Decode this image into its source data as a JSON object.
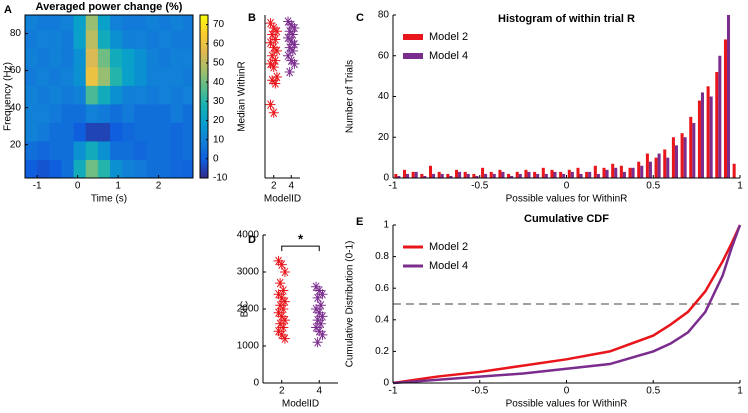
{
  "chart_data": [
    {
      "type": "heatmap",
      "panel": "A",
      "title": "Averaged power change (%)",
      "xlabel": "Time (s)",
      "ylabel": "Frequency (Hz)",
      "xbins": [
        -1.3,
        -1,
        -0.7,
        -0.4,
        -0.1,
        0.2,
        0.5,
        0.8,
        1.1,
        1.4,
        1.7,
        2,
        2.3,
        2.6,
        2.85
      ],
      "ybins": [
        2,
        12,
        22,
        32,
        42,
        52,
        62,
        72,
        82,
        90
      ],
      "z": [
        [
          0,
          -2,
          0,
          5,
          25,
          40,
          30,
          15,
          10,
          8,
          5,
          5,
          3,
          2
        ],
        [
          5,
          3,
          5,
          5,
          15,
          25,
          15,
          5,
          5,
          3,
          5,
          5,
          3,
          5
        ],
        [
          10,
          8,
          5,
          5,
          0,
          -5,
          -5,
          0,
          3,
          5,
          5,
          5,
          3,
          5
        ],
        [
          10,
          10,
          8,
          5,
          5,
          10,
          8,
          5,
          8,
          5,
          5,
          5,
          8,
          5
        ],
        [
          10,
          8,
          10,
          8,
          10,
          35,
          25,
          15,
          10,
          10,
          8,
          10,
          8,
          10
        ],
        [
          8,
          10,
          8,
          10,
          15,
          60,
          45,
          30,
          20,
          15,
          10,
          10,
          10,
          8
        ],
        [
          10,
          8,
          10,
          8,
          15,
          55,
          40,
          25,
          20,
          15,
          10,
          8,
          10,
          10
        ],
        [
          8,
          10,
          10,
          8,
          20,
          50,
          25,
          15,
          10,
          10,
          8,
          10,
          8,
          8
        ],
        [
          10,
          8,
          8,
          10,
          20,
          45,
          20,
          10,
          8,
          8,
          10,
          8,
          10,
          8
        ]
      ],
      "xlim": [
        -1.3,
        2.85
      ],
      "ylim": [
        2,
        90
      ],
      "xticks": [
        -1,
        0,
        1,
        2
      ],
      "yticks": [
        20,
        40,
        60,
        80
      ],
      "clim": [
        -10,
        75
      ],
      "colorbar_ticks": [
        -10,
        0,
        10,
        20,
        30,
        40,
        50,
        60,
        70
      ]
    },
    {
      "type": "strip",
      "panel": "B",
      "ylabel": "Median WithinR",
      "xlabel": "ModelID",
      "xlim": [
        1,
        5
      ],
      "ylim": [
        0,
        1
      ],
      "xticks": [
        2,
        4
      ],
      "series": [
        {
          "x": 2,
          "color": "#e8151b",
          "values": [
            0.95,
            0.92,
            0.9,
            0.88,
            0.85,
            0.83,
            0.8,
            0.78,
            0.75,
            0.72,
            0.7,
            0.68,
            0.62,
            0.6,
            0.58,
            0.45,
            0.4
          ]
        },
        {
          "x": 4,
          "color": "#7b2d8e",
          "values": [
            0.96,
            0.94,
            0.92,
            0.9,
            0.88,
            0.86,
            0.84,
            0.82,
            0.8,
            0.78,
            0.75,
            0.72,
            0.7,
            0.65
          ]
        }
      ]
    },
    {
      "type": "histogram",
      "panel": "C",
      "title": "Histogram of within trial R",
      "xlabel": "Possible values for WithinR",
      "ylabel": "Number of Trials",
      "bins": [
        -1,
        -0.95,
        -0.9,
        -0.85,
        -0.8,
        -0.75,
        -0.7,
        -0.65,
        -0.6,
        -0.55,
        -0.5,
        -0.45,
        -0.4,
        -0.35,
        -0.3,
        -0.25,
        -0.2,
        -0.15,
        -0.1,
        -0.05,
        0,
        0.05,
        0.1,
        0.15,
        0.2,
        0.25,
        0.3,
        0.35,
        0.4,
        0.45,
        0.5,
        0.55,
        0.6,
        0.65,
        0.7,
        0.75,
        0.8,
        0.85,
        0.9,
        0.95,
        1
      ],
      "xlim": [
        -1,
        1
      ],
      "ylim": [
        0,
        80
      ],
      "xticks": [
        -1,
        -0.5,
        0,
        0.5,
        1
      ],
      "yticks": [
        0,
        20,
        40,
        60,
        80
      ],
      "series": [
        {
          "name": "Model 2",
          "color": "#e8151b",
          "values": [
            2,
            4,
            3,
            2,
            6,
            3,
            2,
            4,
            3,
            2,
            5,
            3,
            4,
            2,
            3,
            4,
            3,
            5,
            4,
            3,
            4,
            5,
            3,
            6,
            5,
            7,
            6,
            5,
            8,
            12,
            10,
            14,
            20,
            22,
            30,
            38,
            45,
            52,
            68,
            7
          ]
        },
        {
          "name": "Model 4",
          "color": "#7b2d8e",
          "values": [
            1,
            2,
            3,
            1,
            2,
            2,
            1,
            3,
            2,
            1,
            2,
            2,
            3,
            1,
            2,
            3,
            2,
            2,
            3,
            2,
            3,
            2,
            3,
            2,
            4,
            5,
            3,
            5,
            6,
            8,
            12,
            10,
            16,
            20,
            27,
            42,
            40,
            60,
            80,
            0
          ]
        }
      ]
    },
    {
      "type": "strip",
      "panel": "D",
      "ylabel": "BIC",
      "xlabel": "ModelID",
      "xlim": [
        1,
        5
      ],
      "ylim": [
        0,
        4000
      ],
      "xticks": [
        2,
        4
      ],
      "yticks": [
        0,
        1000,
        2000,
        3000,
        4000
      ],
      "significance": {
        "label": "*",
        "between": [
          2,
          4
        ],
        "y": 3700
      },
      "series": [
        {
          "x": 2,
          "color": "#e8151b",
          "values": [
            3300,
            3200,
            3000,
            2700,
            2500,
            2400,
            2300,
            2200,
            2100,
            2000,
            1900,
            1800,
            1700,
            1600,
            1500,
            1400,
            1300,
            1200
          ]
        },
        {
          "x": 4,
          "color": "#7b2d8e",
          "values": [
            2600,
            2500,
            2400,
            2300,
            2100,
            2000,
            1900,
            1800,
            1700,
            1600,
            1500,
            1400,
            1300,
            1100
          ]
        }
      ]
    },
    {
      "type": "line",
      "panel": "E",
      "title": "Cumulative CDF",
      "xlabel": "Possible values for WithinR",
      "ylabel": "Cumulative Distribution (0-1)",
      "x": [
        -1,
        -0.75,
        -0.5,
        -0.25,
        0,
        0.25,
        0.5,
        0.6,
        0.7,
        0.8,
        0.9,
        0.95,
        1
      ],
      "xlim": [
        -1,
        1
      ],
      "ylim": [
        0,
        1
      ],
      "xticks": [
        -1,
        -0.5,
        0,
        0.5,
        1
      ],
      "yticks": [
        0,
        0.2,
        0.4,
        0.6,
        0.8,
        1
      ],
      "reference_line": 0.5,
      "series": [
        {
          "name": "Model 2",
          "color": "#e8151b",
          "values": [
            0,
            0.04,
            0.07,
            0.11,
            0.15,
            0.2,
            0.3,
            0.37,
            0.45,
            0.58,
            0.77,
            0.88,
            1
          ]
        },
        {
          "name": "Model 4",
          "color": "#7b2d8e",
          "values": [
            0,
            0.02,
            0.04,
            0.06,
            0.09,
            0.12,
            0.2,
            0.25,
            0.32,
            0.45,
            0.68,
            0.85,
            1
          ]
        }
      ]
    }
  ]
}
